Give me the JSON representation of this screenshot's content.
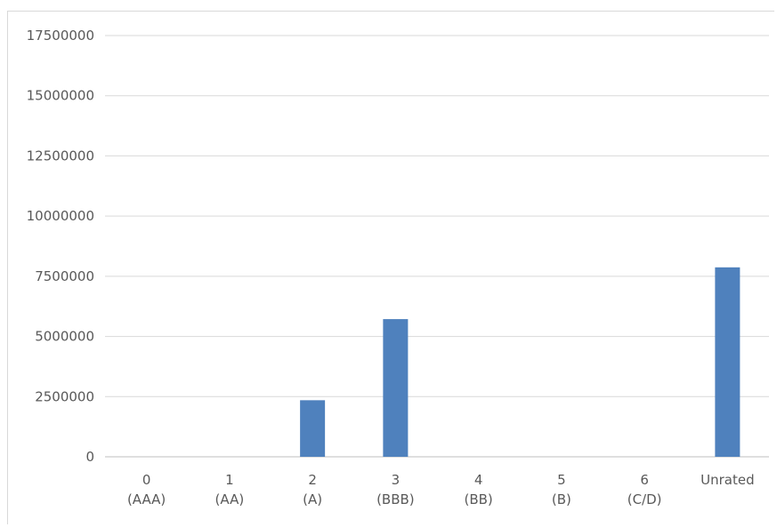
{
  "chart_data": {
    "type": "bar",
    "title": "",
    "xlabel": "",
    "ylabel": "",
    "categories": [
      [
        "0",
        "(AAA)"
      ],
      [
        "1",
        "(AA)"
      ],
      [
        "2",
        "(A)"
      ],
      [
        "3",
        "(BBB)"
      ],
      [
        "4",
        "(BB)"
      ],
      [
        "5",
        "(B)"
      ],
      [
        "6",
        "(C/D)"
      ],
      [
        "Unrated"
      ]
    ],
    "values": [
      0,
      0,
      2350000,
      5720000,
      0,
      0,
      0,
      7870000
    ],
    "ylim": [
      0,
      17500000
    ],
    "yticks": [
      0,
      2500000,
      5000000,
      7500000,
      10000000,
      12500000,
      15000000,
      17500000
    ],
    "ytick_labels": [
      "0",
      "2500000",
      "5000000",
      "7500000",
      "10000000",
      "12500000",
      "15000000",
      "17500000"
    ],
    "grid": true,
    "legend": "none",
    "bar_color": "#4f81bd"
  }
}
